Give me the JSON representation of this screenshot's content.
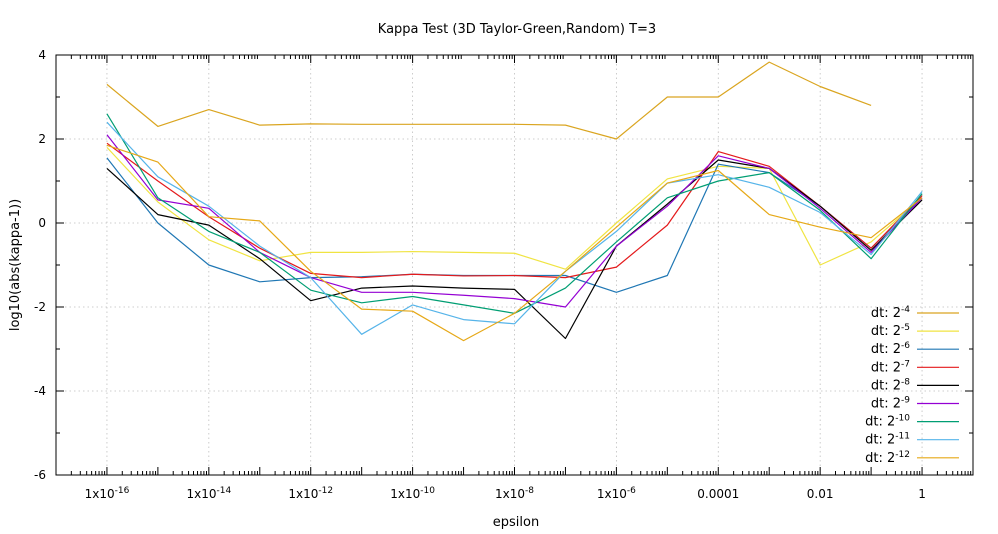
{
  "chart_data": {
    "type": "line",
    "title": "Kappa Test (3D Taylor-Green,Random) T=3",
    "xlabel": "epsilon",
    "ylabel": "log10(abs(kappa-1))",
    "x_scale": "log",
    "xlim": [
      1e-17,
      10
    ],
    "ylim": [
      -6,
      4
    ],
    "grid": true,
    "legend_position": "bottom-right",
    "x_ticks": [
      {
        "value": 1e-16,
        "label": "1x10-16",
        "base": "1x10",
        "sup": "-16"
      },
      {
        "value": 1e-14,
        "label": "1x10-14",
        "base": "1x10",
        "sup": "-14"
      },
      {
        "value": 1e-12,
        "label": "1x10-12",
        "base": "1x10",
        "sup": "-12"
      },
      {
        "value": 1e-10,
        "label": "1x10-10",
        "base": "1x10",
        "sup": "-10"
      },
      {
        "value": 1e-08,
        "label": "1x10-8",
        "base": "1x10",
        "sup": "-8"
      },
      {
        "value": 1e-06,
        "label": "1x10-6",
        "base": "1x10",
        "sup": "-6"
      },
      {
        "value": 0.0001,
        "label": "0.0001",
        "base": "0.0001",
        "sup": ""
      },
      {
        "value": 0.01,
        "label": "0.01",
        "base": "0.01",
        "sup": ""
      },
      {
        "value": 1,
        "label": "1",
        "base": "1",
        "sup": ""
      }
    ],
    "y_ticks": [
      {
        "value": 4,
        "label": "4"
      },
      {
        "value": 2,
        "label": "2"
      },
      {
        "value": 0,
        "label": "0"
      },
      {
        "value": -2,
        "label": "-2"
      },
      {
        "value": -4,
        "label": "-4"
      },
      {
        "value": -6,
        "label": "-6"
      }
    ],
    "x": [
      1e-16,
      1e-15,
      1e-14,
      1e-13,
      1e-12,
      1e-11,
      1e-10,
      1e-09,
      1e-08,
      1e-07,
      1e-06,
      1e-05,
      0.0001,
      0.001,
      0.01,
      0.1,
      1
    ],
    "series": [
      {
        "name": "dt: 2-4",
        "name_base": "dt: 2",
        "name_sup": "-4",
        "color": "#daa520",
        "values": [
          3.3,
          2.3,
          2.7,
          2.33,
          2.36,
          2.35,
          2.35,
          2.35,
          2.35,
          2.33,
          2.0,
          3.0,
          3.0,
          3.83,
          3.25,
          2.8,
          null
        ]
      },
      {
        "name": "dt: 2-5",
        "name_base": "dt: 2",
        "name_sup": "-5",
        "color": "#f0e442",
        "values": [
          1.8,
          0.5,
          -0.4,
          -0.9,
          -0.7,
          -0.7,
          -0.68,
          -0.7,
          -0.72,
          -1.1,
          0.0,
          1.05,
          1.35,
          1.3,
          -1.0,
          -0.45,
          0.6
        ]
      },
      {
        "name": "dt: 2-6",
        "name_base": "dt: 2",
        "name_sup": "-6",
        "color": "#1f77b4",
        "values": [
          1.55,
          0.0,
          -1.0,
          -1.4,
          -1.3,
          -1.28,
          -1.22,
          -1.25,
          -1.25,
          -1.25,
          -1.65,
          -1.25,
          1.4,
          1.2,
          0.4,
          -0.6,
          0.6
        ]
      },
      {
        "name": "dt: 2-7",
        "name_base": "dt: 2",
        "name_sup": "-7",
        "color": "#e41a1c",
        "values": [
          1.9,
          1.0,
          0.15,
          -0.6,
          -1.2,
          -1.3,
          -1.22,
          -1.26,
          -1.25,
          -1.3,
          -1.05,
          -0.05,
          1.7,
          1.35,
          0.4,
          -0.6,
          0.65
        ]
      },
      {
        "name": "dt: 2-8",
        "name_base": "dt: 2",
        "name_sup": "-8",
        "color": "#000000",
        "values": [
          1.3,
          0.2,
          -0.05,
          -0.85,
          -1.85,
          -1.55,
          -1.5,
          -1.55,
          -1.58,
          -2.75,
          -0.55,
          0.45,
          1.5,
          1.3,
          0.4,
          -0.65,
          0.55
        ]
      },
      {
        "name": "dt: 2-9",
        "name_base": "dt: 2",
        "name_sup": "-9",
        "color": "#9400d3",
        "values": [
          2.1,
          0.55,
          0.35,
          -0.7,
          -1.3,
          -1.65,
          -1.65,
          -1.72,
          -1.8,
          -2.0,
          -0.55,
          0.4,
          1.6,
          1.3,
          0.35,
          -0.7,
          0.6
        ]
      },
      {
        "name": "dt: 2-10",
        "name_base": "dt: 2",
        "name_sup": "-10",
        "color": "#009e73",
        "values": [
          2.6,
          0.6,
          -0.2,
          -0.7,
          -1.6,
          -1.9,
          -1.75,
          -1.95,
          -2.15,
          -1.55,
          -0.45,
          0.6,
          1.0,
          1.2,
          0.3,
          -0.85,
          0.7
        ]
      },
      {
        "name": "dt: 2-11",
        "name_base": "dt: 2",
        "name_sup": "-11",
        "color": "#56b4e9",
        "values": [
          2.4,
          1.1,
          0.4,
          -0.55,
          -1.3,
          -2.65,
          -1.95,
          -2.3,
          -2.4,
          -1.15,
          -0.2,
          0.95,
          1.15,
          0.85,
          0.25,
          -0.75,
          0.75
        ]
      },
      {
        "name": "dt: 2-12",
        "name_base": "dt: 2",
        "name_sup": "-12",
        "color": "#e6a817",
        "values": [
          1.85,
          1.45,
          0.15,
          0.05,
          -1.15,
          -2.05,
          -2.1,
          -2.8,
          -2.15,
          -1.15,
          -0.1,
          0.95,
          1.25,
          0.2,
          -0.1,
          -0.35,
          0.6
        ]
      }
    ]
  }
}
